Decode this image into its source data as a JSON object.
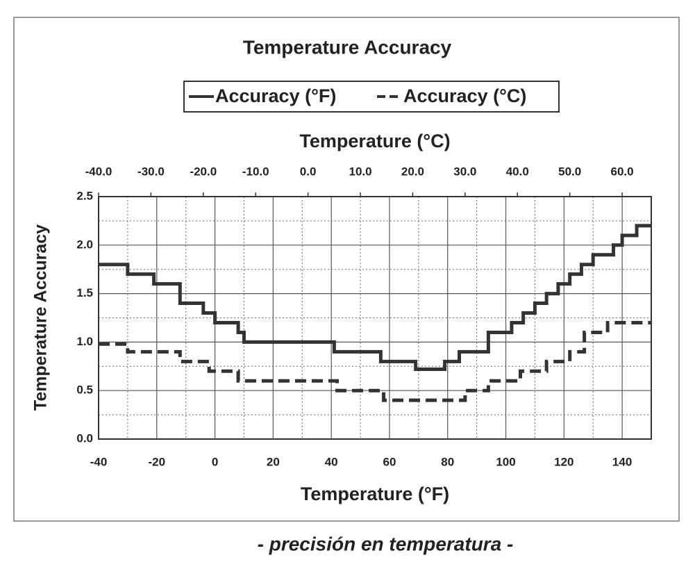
{
  "chart_data": {
    "type": "line",
    "title": "Temperature Accuracy",
    "x_label": "Temperature (°F)",
    "x2_label": "Temperature (°C)",
    "y_label": "Temperature Accuracy",
    "caption": "- precisión en temperatura -",
    "xlim": [
      -40,
      150
    ],
    "xticks": [
      -40,
      -20,
      0,
      20,
      40,
      60,
      80,
      100,
      120,
      140
    ],
    "x2lim": [
      -40,
      65.56
    ],
    "x2ticks": [
      {
        "value": -40,
        "label": "-40.0"
      },
      {
        "value": -30,
        "label": "-30.0"
      },
      {
        "value": -20,
        "label": "-20.0"
      },
      {
        "value": -10,
        "label": "-10.0"
      },
      {
        "value": 0,
        "label": "0.0"
      },
      {
        "value": 10,
        "label": "10.0"
      },
      {
        "value": 20,
        "label": "20.0"
      },
      {
        "value": 30,
        "label": "30.0"
      },
      {
        "value": 40,
        "label": "40.0"
      },
      {
        "value": 50,
        "label": "50.0"
      },
      {
        "value": 60,
        "label": "60.0"
      }
    ],
    "ylim": [
      0,
      2.5
    ],
    "yticks": [
      {
        "value": 0,
        "label": "0.0"
      },
      {
        "value": 0.5,
        "label": "0.5"
      },
      {
        "value": 1,
        "label": "1.0"
      },
      {
        "value": 1.5,
        "label": "1.5"
      },
      {
        "value": 2,
        "label": "2.0"
      },
      {
        "value": 2.5,
        "label": "2.5"
      }
    ],
    "grid": true,
    "series": [
      {
        "name": "Accuracy (°F)",
        "color": "#333333",
        "dash": false,
        "x": [
          -40,
          -30,
          -30,
          -21,
          -21,
          -12,
          -12,
          -4,
          -4,
          0,
          0,
          8,
          8,
          10,
          10,
          41,
          41,
          57,
          57,
          69,
          69,
          79,
          79,
          84,
          84,
          94,
          94,
          102,
          102,
          106,
          106,
          110,
          110,
          114,
          114,
          118,
          118,
          122,
          122,
          126,
          126,
          130,
          130,
          137,
          137,
          140,
          140,
          145,
          145,
          150
        ],
        "values": [
          1.8,
          1.8,
          1.7,
          1.7,
          1.6,
          1.6,
          1.4,
          1.4,
          1.3,
          1.3,
          1.2,
          1.2,
          1.1,
          1.1,
          1.0,
          1.0,
          0.9,
          0.9,
          0.8,
          0.8,
          0.72,
          0.72,
          0.8,
          0.8,
          0.9,
          0.9,
          1.1,
          1.1,
          1.2,
          1.2,
          1.3,
          1.3,
          1.4,
          1.4,
          1.5,
          1.5,
          1.6,
          1.6,
          1.7,
          1.7,
          1.8,
          1.8,
          1.9,
          1.9,
          2.0,
          2.0,
          2.1,
          2.1,
          2.2,
          2.2
        ]
      },
      {
        "name": "Accuracy (°C)",
        "color": "#333333",
        "dash": true,
        "x": [
          -40,
          -30,
          -30,
          -12,
          -12,
          -2,
          -2,
          8,
          8,
          42,
          42,
          58,
          58,
          86,
          86,
          94,
          94,
          105,
          105,
          114,
          114,
          122,
          122,
          127,
          127,
          135,
          135,
          150
        ],
        "values": [
          0.98,
          0.98,
          0.9,
          0.9,
          0.8,
          0.8,
          0.7,
          0.7,
          0.6,
          0.6,
          0.5,
          0.5,
          0.4,
          0.4,
          0.5,
          0.5,
          0.6,
          0.6,
          0.7,
          0.7,
          0.8,
          0.8,
          0.9,
          0.9,
          1.1,
          1.1,
          1.2,
          1.2
        ]
      }
    ]
  }
}
